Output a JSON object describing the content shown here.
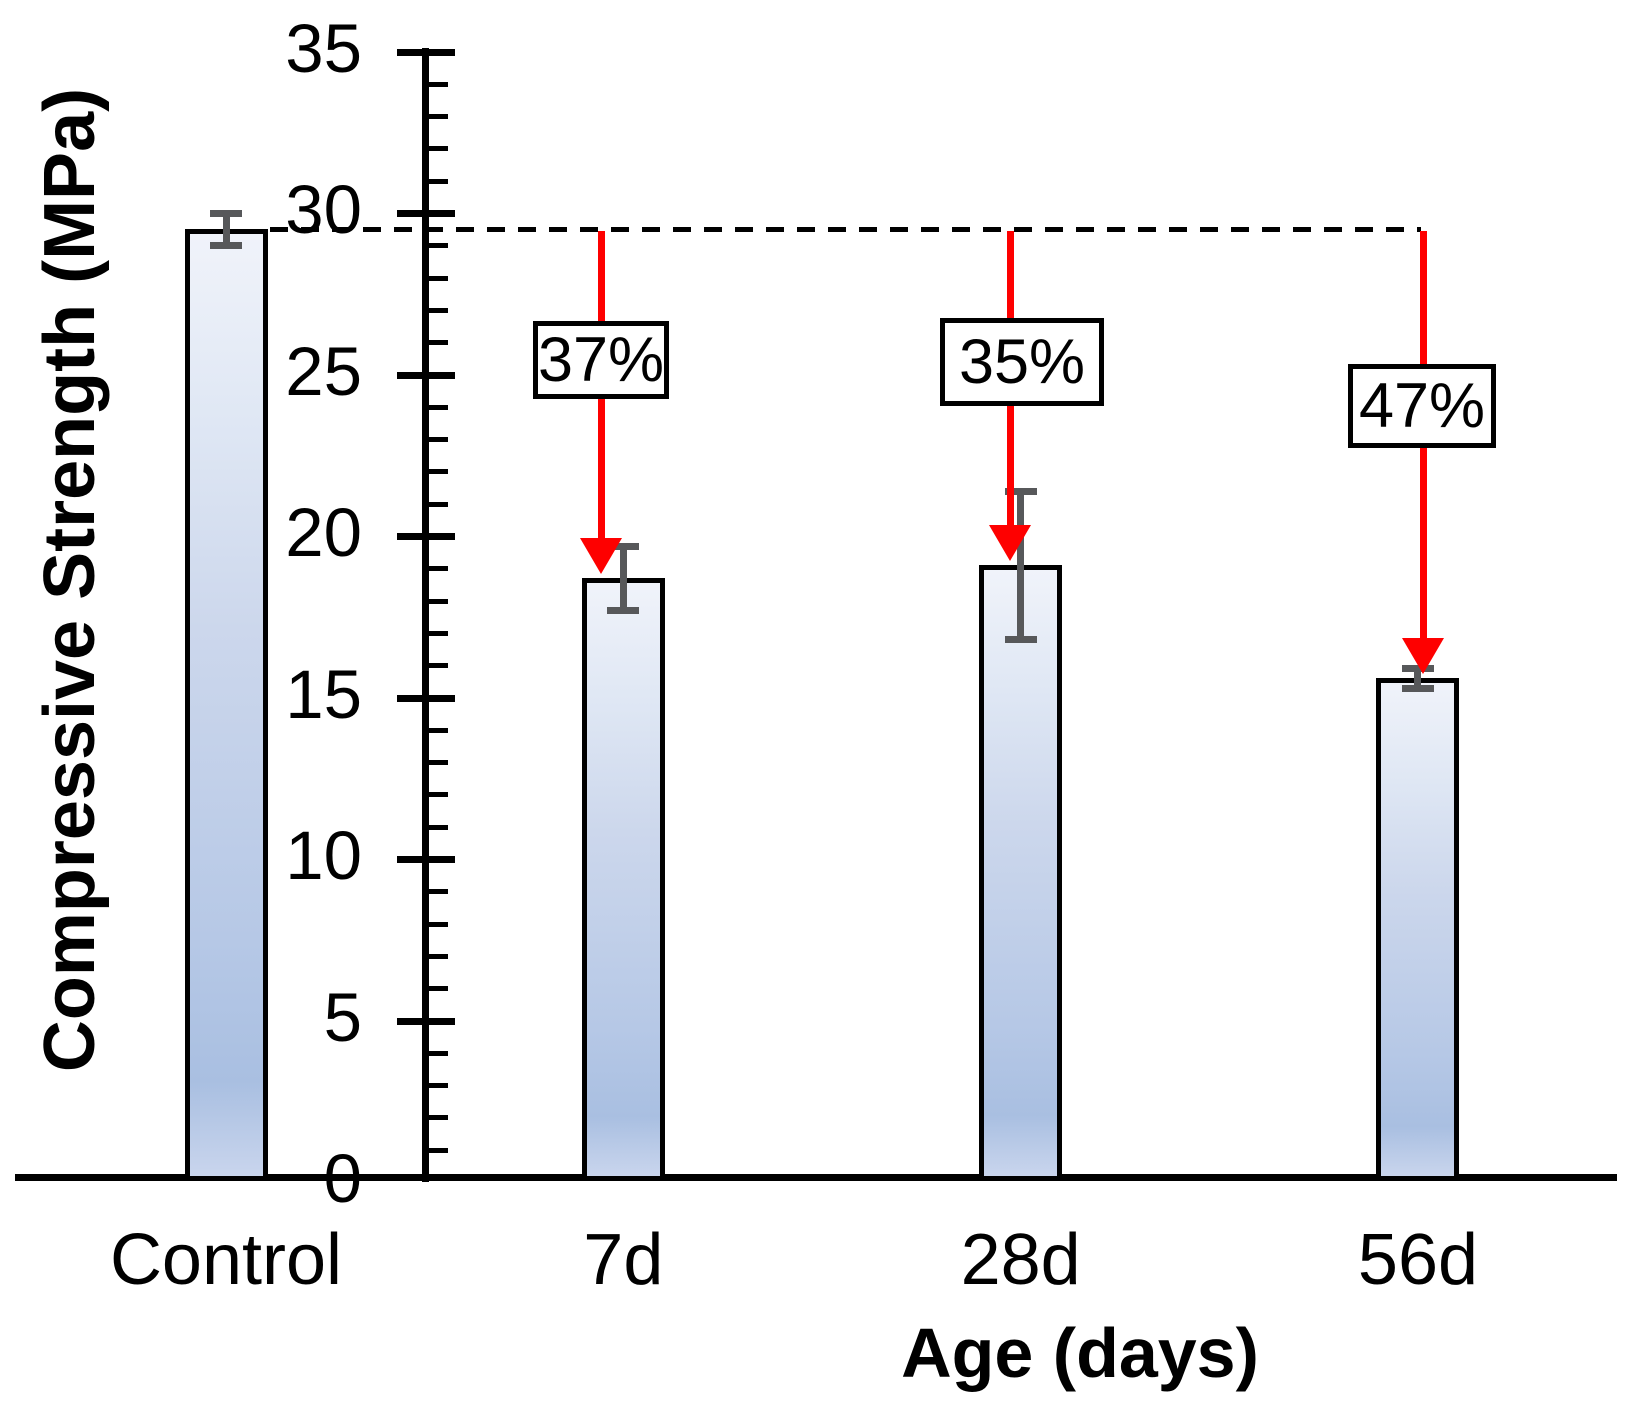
{
  "figure": {
    "background": "#ffffff"
  },
  "chart_data": {
    "type": "bar",
    "title": "",
    "xlabel": "Age (days)",
    "ylabel": "Compressive Strength (MPa)",
    "ylim": [
      0,
      35
    ],
    "ytick_major_step": 5,
    "ytick_minor_step": 1,
    "ytick_labels": [
      "0",
      "5",
      "10",
      "15",
      "20",
      "25",
      "30",
      "35"
    ],
    "grid": false,
    "legend": null,
    "categories": [
      "Control",
      "7d",
      "28d",
      "56d"
    ],
    "values": [
      29.5,
      18.7,
      19.1,
      15.6
    ],
    "errors": [
      0.5,
      1.0,
      2.3,
      0.3
    ],
    "units": "MPa",
    "reference_line": {
      "value": 29.5,
      "style": "dashed",
      "color": "#000000"
    },
    "reduction_annotations": [
      {
        "category": "7d",
        "label": "37%"
      },
      {
        "category": "28d",
        "label": "35%"
      },
      {
        "category": "56d",
        "label": "47%"
      }
    ],
    "colors": {
      "bar_fill_light": "#f0f3fa",
      "bar_fill_dark": "#a9bfe1",
      "bar_fill_base_sheen": "#c9d5ed",
      "bar_border": "#000000",
      "error_bar": "#57585a",
      "arrow": "#fe0000",
      "annotation_box_bg": "#ffffff",
      "annotation_box_border": "#000000",
      "axis": "#000000"
    }
  }
}
